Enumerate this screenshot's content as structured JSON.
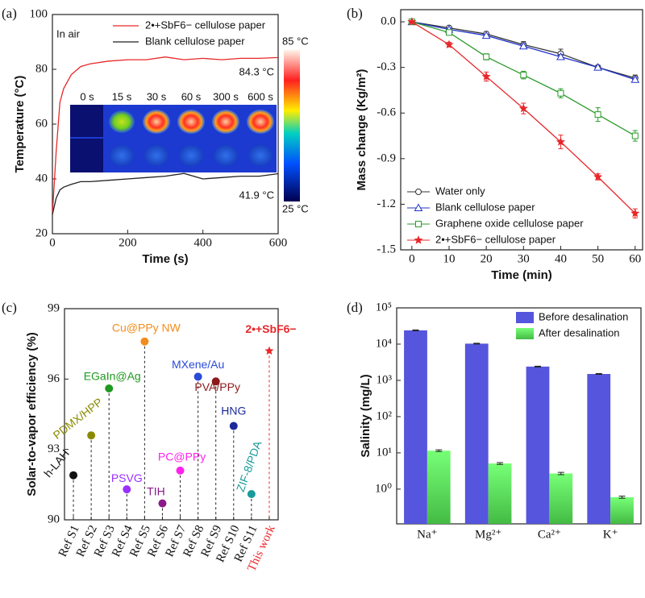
{
  "chart_data": [
    {
      "type": "line",
      "panel_label": "(a)",
      "xlabel": "Time (s)",
      "ylabel": "Temperature (°C)",
      "xlim": [
        0,
        600
      ],
      "xticks": [
        0,
        200,
        400,
        600
      ],
      "ylim": [
        20,
        100
      ],
      "yticks": [
        20,
        40,
        60,
        80,
        100
      ],
      "x": [
        0,
        10,
        20,
        30,
        50,
        75,
        100,
        150,
        200,
        250,
        300,
        350,
        400,
        450,
        500,
        550,
        600
      ],
      "series": [
        {
          "name": "2•+SbF6− cellulose paper",
          "color": "#e8272a",
          "values": [
            27,
            50,
            68,
            73,
            78,
            81,
            82,
            83,
            83.5,
            83.5,
            84.5,
            83.5,
            84,
            83.5,
            84,
            84,
            84.3
          ]
        },
        {
          "name": "Blank cellulose paper",
          "color": "#222222",
          "values": [
            27,
            33,
            36,
            37,
            38,
            39,
            39,
            39.5,
            40,
            40.5,
            41,
            42,
            40,
            40.5,
            41,
            41,
            41.9
          ]
        }
      ],
      "annotations": [
        "In air",
        "84.3 °C",
        "41.9 °C"
      ],
      "inset_labels": [
        "0 s",
        "15 s",
        "30 s",
        "60 s",
        "300 s",
        "600 s"
      ],
      "colorbar_labels": [
        "85 °C",
        "25 °C"
      ]
    },
    {
      "type": "line",
      "panel_label": "(b)",
      "xlabel": "Time (min)",
      "ylabel": "Mass change (Kg/m²)",
      "xlim": [
        -3,
        62
      ],
      "xticks": [
        0,
        10,
        20,
        30,
        40,
        50,
        60
      ],
      "ylim": [
        -1.5,
        0.08
      ],
      "yticks": [
        -1.5,
        -1.2,
        -0.9,
        -0.6,
        -0.3,
        {
          "value": 0,
          "label": "0.0"
        }
      ],
      "x": [
        0,
        10,
        20,
        30,
        40,
        50,
        60
      ],
      "legend": "lower left",
      "series": [
        {
          "name": "Water only",
          "color": "#333333",
          "marker": "circle",
          "values": [
            0,
            -0.04,
            -0.08,
            -0.15,
            -0.21,
            -0.3,
            -0.37
          ],
          "errors": [
            0.005,
            0.01,
            0.015,
            0.02,
            0.03,
            0.015,
            0.02
          ]
        },
        {
          "name": "Blank cellulose paper",
          "color": "#2233cc",
          "marker": "triangle",
          "values": [
            0,
            -0.05,
            -0.09,
            -0.16,
            -0.23,
            -0.3,
            -0.38
          ],
          "errors": [
            0.005,
            0.01,
            0.01,
            0.015,
            0.015,
            0.01,
            0.015
          ]
        },
        {
          "name": "Graphene oxide cellulose paper",
          "color": "#2a9a2a",
          "marker": "square",
          "values": [
            0,
            -0.07,
            -0.23,
            -0.35,
            -0.47,
            -0.61,
            -0.75
          ],
          "errors": [
            0.005,
            0.015,
            0.02,
            0.025,
            0.03,
            0.045,
            0.035
          ]
        },
        {
          "name": "2•+SbF6− cellulose paper",
          "color": "#e8272a",
          "marker": "star",
          "values": [
            0,
            -0.15,
            -0.36,
            -0.57,
            -0.79,
            -1.02,
            -1.26
          ],
          "errors": [
            0.005,
            0.015,
            0.03,
            0.035,
            0.045,
            0.02,
            0.03
          ]
        }
      ]
    },
    {
      "type": "dot",
      "panel_label": "(c)",
      "ylabel": "Solar-to-vapor efficiency (%)",
      "categories": [
        "Ref S1",
        "Ref S2",
        "Ref S3",
        "Ref S4",
        "Ref S5",
        "Ref S6",
        "Ref S7",
        "Ref S8",
        "Ref S9",
        "Ref S10",
        "Ref S11",
        "This work"
      ],
      "ylim": [
        90,
        99
      ],
      "yticks": [
        90,
        93,
        96,
        99
      ],
      "values": [
        91.9,
        93.6,
        95.6,
        91.3,
        97.6,
        90.7,
        92.1,
        96.1,
        95.9,
        94.0,
        91.1,
        97.2
      ],
      "point_labels": [
        "h-LAH",
        "PDMX/HPP",
        "EGaIn@Ag",
        "PSVG",
        "Cu@PPy NW",
        "TIH",
        "PC@PPy",
        "MXene/Au",
        "PVA/PPy",
        "HNG",
        "ZIF-8/PDA",
        "2•+SbF6−"
      ],
      "colors": [
        "#111111",
        "#8a8a00",
        "#1f9a1f",
        "#9b30ff",
        "#f28c1c",
        "#8b1a8b",
        "#ff22ee",
        "#2a4bd7",
        "#8b1a1a",
        "#1a2a9a",
        "#1a9a9a",
        "#e8272a"
      ]
    },
    {
      "type": "bar",
      "panel_label": "(d)",
      "ylabel": "Salinity (mg/L)",
      "log_scale": true,
      "categories": [
        "Na⁺",
        "Mg²⁺",
        "Ca²⁺",
        "K⁺"
      ],
      "ylim": [
        0.11,
        100000
      ],
      "yticks": [
        {
          "value": 1,
          "label": "10⁰"
        },
        {
          "value": 10,
          "label": "10¹"
        },
        {
          "value": 100,
          "label": "10²"
        },
        {
          "value": 1000,
          "label": "10³"
        },
        {
          "value": 10000,
          "label": "10⁴"
        },
        {
          "value": 100000,
          "label": "10⁵"
        }
      ],
      "legend": "upper right",
      "series": [
        {
          "name": "Before desalination",
          "color": "#5555dd",
          "values": [
            24000,
            10300,
            2400,
            1500
          ],
          "errors": [
            600,
            250,
            60,
            40
          ]
        },
        {
          "name": "After desalination",
          "color": "#66ee66",
          "values": [
            11.5,
            5.1,
            2.7,
            0.6
          ],
          "errors": [
            0.6,
            0.3,
            0.2,
            0.04
          ]
        }
      ]
    }
  ]
}
